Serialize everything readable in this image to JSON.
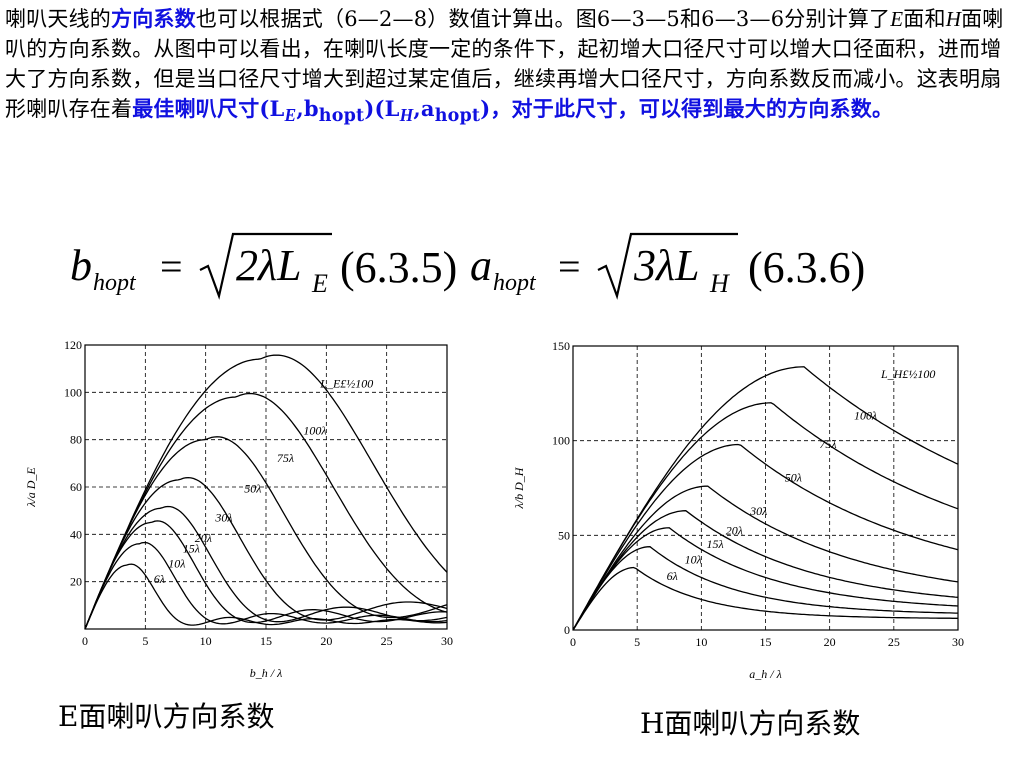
{
  "paragraph": {
    "s1": "喇叭天线的",
    "k1": "方向系数",
    "s2": "也可以根据式（6—2—8）数值计算出。图6—3—5和6—3—6分别计算了",
    "E": "E",
    "s3": "面和",
    "H": "H",
    "s4": "面喇叭的方向系数。从图中可以看出，在喇叭长度一定的条件下，起初增大口径尺寸可以增大口径面积，进而增大了方向系数，但是当口径尺寸增大到超过某定值后，继续再增大口径尺寸，方向系数反而减小。这表明扇形喇叭存在着",
    "k2": "最佳喇叭尺寸(L",
    "k2sub": "E",
    "k3": ",b",
    "k3sub": "hopt",
    "k4": ")(L",
    "k4sub": "H",
    "k5": ",a",
    "k5sub": "hopt",
    "k6": ")，对于此尺寸，可以得到最大的方向系数。"
  },
  "formula": {
    "b": "b",
    "b_sub": "hopt",
    "eq1": "=",
    "coef1": "2λL",
    "coef1_sub": "E",
    "ref1": "(6.3.5)",
    "a": "a",
    "a_sub": "hopt",
    "eq2": "=",
    "coef2": "3λL",
    "coef2_sub": "H",
    "ref2": "(6.3.6)"
  },
  "chart_data": [
    {
      "type": "line",
      "xlabel": "b_h / λ",
      "ylabel": "λ/a D_E",
      "xlim": [
        0,
        30
      ],
      "ylim": [
        0,
        120
      ],
      "xticks": [
        0,
        5,
        10,
        15,
        20,
        25,
        30
      ],
      "yticks": [
        20,
        40,
        60,
        80,
        100,
        120
      ],
      "grid": true,
      "legend_title": "L_E£½100",
      "series": [
        {
          "name": "6λ",
          "peak_x": 3.5,
          "peak_y": 27
        },
        {
          "name": "10λ",
          "peak_x": 4.5,
          "peak_y": 36
        },
        {
          "name": "15λ",
          "peak_x": 5.5,
          "peak_y": 45
        },
        {
          "name": "20λ",
          "peak_x": 6.3,
          "peak_y": 51
        },
        {
          "name": "30λ",
          "peak_x": 7.8,
          "peak_y": 63
        },
        {
          "name": "50λ",
          "peak_x": 10.0,
          "peak_y": 80
        },
        {
          "name": "75λ",
          "peak_x": 12.5,
          "peak_y": 98
        },
        {
          "name": "100λ",
          "peak_x": 14.5,
          "peak_y": 114
        }
      ]
    },
    {
      "type": "line",
      "xlabel": "a_h / λ",
      "ylabel": "λ/b D_H",
      "xlim": [
        0,
        30
      ],
      "ylim": [
        0,
        150
      ],
      "xticks": [
        0,
        5,
        10,
        15,
        20,
        25,
        30
      ],
      "yticks": [
        0,
        50,
        100,
        150
      ],
      "grid": true,
      "legend_title": "L_H£½100",
      "series": [
        {
          "name": "6λ",
          "peak_x": 4.8,
          "peak_y": 33
        },
        {
          "name": "10λ",
          "peak_x": 6.0,
          "peak_y": 44
        },
        {
          "name": "15λ",
          "peak_x": 7.5,
          "peak_y": 54
        },
        {
          "name": "20λ",
          "peak_x": 8.8,
          "peak_y": 63
        },
        {
          "name": "30λ",
          "peak_x": 10.5,
          "peak_y": 76
        },
        {
          "name": "50λ",
          "peak_x": 13.0,
          "peak_y": 98
        },
        {
          "name": "75λ",
          "peak_x": 15.5,
          "peak_y": 120
        },
        {
          "name": "100λ",
          "peak_x": 18.0,
          "peak_y": 139
        }
      ]
    }
  ],
  "captions": {
    "left": "E面喇叭方向系数",
    "right": "H面喇叭方向系数"
  }
}
